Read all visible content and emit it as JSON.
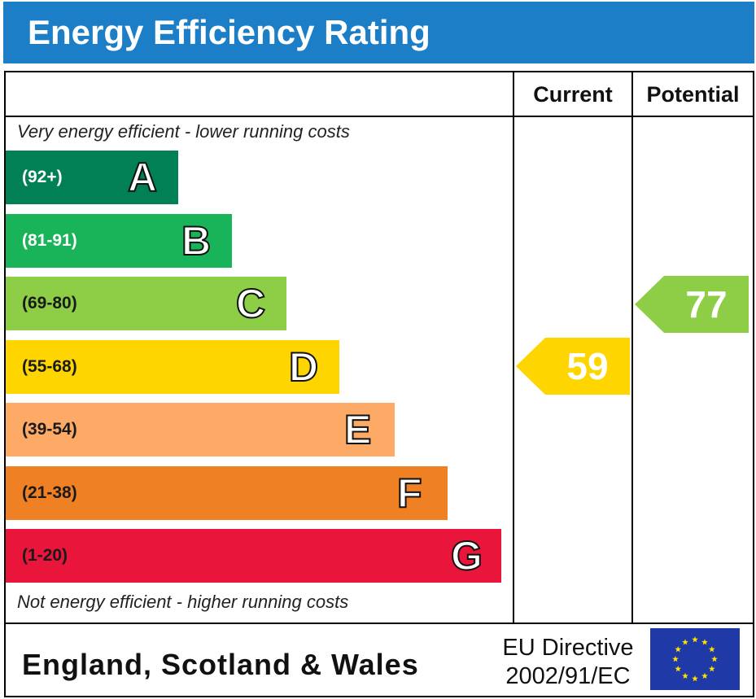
{
  "header": {
    "title": "Energy Efficiency Rating"
  },
  "columns": {
    "current": "Current",
    "potential": "Potential"
  },
  "notes": {
    "top": "Very energy efficient - lower running costs",
    "bottom": "Not energy efficient - higher running costs"
  },
  "chart_data": {
    "type": "bar",
    "title": "Energy Efficiency Rating",
    "categories": [
      "A",
      "B",
      "C",
      "D",
      "E",
      "F",
      "G"
    ],
    "bands": [
      {
        "letter": "A",
        "range": "(92+)",
        "color": "#008054"
      },
      {
        "letter": "B",
        "range": "(81-91)",
        "color": "#19b459"
      },
      {
        "letter": "C",
        "range": "(69-80)",
        "color": "#8dce46"
      },
      {
        "letter": "D",
        "range": "(55-68)",
        "color": "#ffd500"
      },
      {
        "letter": "E",
        "range": "(39-54)",
        "color": "#fcaa65"
      },
      {
        "letter": "F",
        "range": "(21-38)",
        "color": "#ef8023"
      },
      {
        "letter": "G",
        "range": "(1-20)",
        "color": "#e9153b"
      }
    ],
    "series": [
      {
        "name": "Current",
        "value": 59,
        "band": "D",
        "color": "#ffd500"
      },
      {
        "name": "Potential",
        "value": 77,
        "band": "C",
        "color": "#8dce46"
      }
    ]
  },
  "footer": {
    "region": "England, Scotland & Wales",
    "directive_line1": "EU Directive",
    "directive_line2": "2002/91/EC"
  }
}
